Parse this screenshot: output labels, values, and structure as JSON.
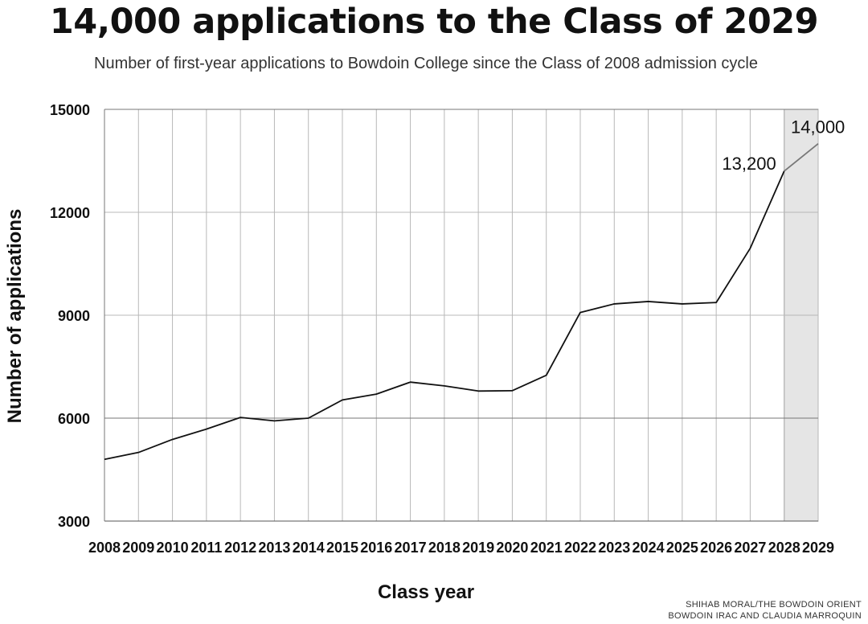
{
  "title": "14,000 applications to the Class of 2029",
  "subtitle": "Number of first-year applications to Bowdoin College since the Class of 2008 admission cycle",
  "credit": {
    "line1": "SHIHAB MORAL/THE BOWDOIN ORIENT",
    "line2": "BOWDOIN IRAC AND CLAUDIA MARROQUIN"
  },
  "chart_data": {
    "type": "line",
    "title": "14,000 applications to the Class of 2029",
    "subtitle": "Number of first-year applications to Bowdoin College since the Class of 2008 admission cycle",
    "xlabel": "Class year",
    "ylabel": "Number of applications",
    "x": [
      2008,
      2009,
      2010,
      2011,
      2012,
      2013,
      2014,
      2015,
      2016,
      2017,
      2018,
      2019,
      2020,
      2021,
      2022,
      2023,
      2024,
      2025,
      2026,
      2027,
      2028,
      2029
    ],
    "x_tick_labels": [
      "2008",
      "2009",
      "2010",
      "2011",
      "2012",
      "2013",
      "2014",
      "2015",
      "2016",
      "2017",
      "2018",
      "2019",
      "2020",
      "2021",
      "2022",
      "2023",
      "2024",
      "2025",
      "2026",
      "2027",
      "2028",
      "2029"
    ],
    "y_ticks": [
      3000,
      6000,
      9000,
      12000,
      15000
    ],
    "y_tick_labels": [
      "3000",
      "6000",
      "9000",
      "12000",
      "15000"
    ],
    "ylim": [
      3000,
      15000
    ],
    "grid": true,
    "series": [
      {
        "values": [
          4800,
          5000,
          5380,
          5680,
          6020,
          5920,
          6000,
          6530,
          6700,
          7050,
          6940,
          6790,
          6800,
          7250,
          9080,
          9330,
          9400,
          9330,
          9370,
          10950,
          13200,
          14000
        ]
      }
    ],
    "highlight": {
      "from": 2028,
      "to": 2029,
      "color": "#e5e5e5"
    },
    "annotations": [
      {
        "x": 2028,
        "y": 13200,
        "text": "13,200"
      },
      {
        "x": 2029,
        "y": 14000,
        "text": "14,000"
      }
    ],
    "colors": {
      "line": "#111111",
      "projected_line": "#777777",
      "grid": "#b8b8b8",
      "highlight": "#e5e5e5"
    }
  }
}
